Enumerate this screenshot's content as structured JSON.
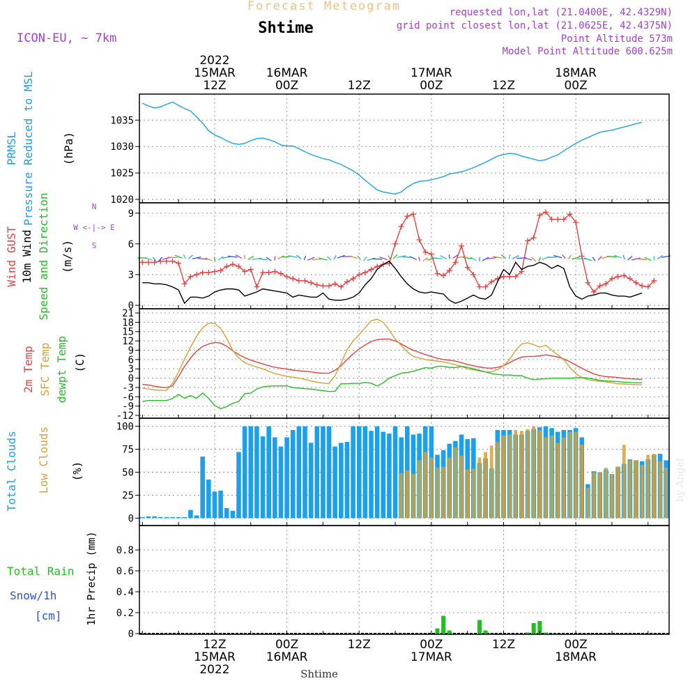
{
  "header": {
    "app_title": "Forecast Meteogram",
    "location": "Shtime",
    "model": "ICON-EU, ~ 7km",
    "requested": "requested lon,lat (21.0400E, 42.4329N)",
    "gridpoint": "grid point closest lon,lat (21.0625E, 42.4375N)",
    "point_alt": "Point Altitude 573m",
    "model_alt": "Model Point Altitude 600.625m",
    "watermark": "by Angel",
    "footer": "Shtime"
  },
  "colors": {
    "blue": "#1aa0ee",
    "red": "#e84040",
    "green": "#20c020",
    "orange": "#d8a030",
    "purple": "#a040d0",
    "black": "#000000",
    "navy": "#3050e0"
  },
  "chart_data": [
    {
      "type": "line",
      "id": "pressure",
      "title": "PRMSL Pressure Reduced to MSL",
      "ylabel_lines": [
        "PRMSL",
        "Pressure Reduced to MSL"
      ],
      "units": "(hPa)",
      "ylim": [
        1020,
        1039
      ],
      "yticks": [
        1020,
        1025,
        1030,
        1035
      ],
      "x_start": 0,
      "x_step": 1,
      "values": [
        1038.2,
        1037.7,
        1037.3,
        1037.5,
        1038.0,
        1038.4,
        1037.8,
        1037.2,
        1036.7,
        1035.6,
        1034.4,
        1033.0,
        1032.2,
        1031.7,
        1031.1,
        1030.6,
        1030.4,
        1030.6,
        1031.1,
        1031.5,
        1031.6,
        1031.3,
        1030.9,
        1030.3,
        1030.1,
        1030.1,
        1029.6,
        1029.0,
        1028.5,
        1028.1,
        1027.7,
        1027.5,
        1027.0,
        1026.6,
        1026.0,
        1025.4,
        1024.6,
        1023.6,
        1022.7,
        1021.8,
        1021.4,
        1021.2,
        1021.0,
        1021.4,
        1022.3,
        1023.0,
        1023.4,
        1023.5,
        1023.7,
        1024.0,
        1024.3,
        1024.8,
        1025.0,
        1025.2,
        1025.6,
        1026.0,
        1026.5,
        1027.0,
        1027.6,
        1028.2,
        1028.5,
        1028.7,
        1028.6,
        1028.2,
        1027.9,
        1027.6,
        1027.3,
        1027.5,
        1028.0,
        1028.4,
        1029.2,
        1029.9,
        1030.6,
        1031.2,
        1031.7,
        1032.2,
        1032.7,
        1032.9,
        1033.1,
        1033.4,
        1033.7,
        1034.0,
        1034.3,
        1034.6
      ]
    },
    {
      "type": "line",
      "id": "wind",
      "ylabel_lines": [
        "Wind GUST",
        "10m Wind",
        "Speed and Direction"
      ],
      "units": "(m/s)",
      "compass": [
        "N",
        "W <-|-> E",
        "S"
      ],
      "ylim": [
        0,
        9.6
      ],
      "yticks": [
        0,
        3,
        6,
        9
      ],
      "x_start": 0,
      "x_step": 1,
      "series": [
        {
          "name": "Wind GUST",
          "color": "red",
          "values": [
            4.2,
            4.2,
            4.2,
            4.3,
            4.3,
            4.3,
            4.1,
            2.1,
            2.8,
            3.0,
            3.2,
            3.2,
            3.3,
            3.4,
            3.8,
            4.0,
            3.8,
            3.3,
            3.5,
            1.8,
            3.2,
            3.2,
            3.3,
            3.1,
            2.8,
            2.6,
            2.4,
            2.4,
            2.2,
            2.0,
            1.9,
            1.9,
            2.1,
            1.8,
            2.3,
            2.6,
            3.0,
            3.2,
            3.5,
            3.8,
            4.0,
            4.1,
            6.0,
            7.7,
            8.7,
            8.9,
            6.4,
            5.2,
            5.0,
            3.1,
            2.9,
            3.4,
            4.2,
            5.8,
            3.7,
            3.0,
            1.8,
            1.8,
            2.3,
            2.6,
            2.8,
            2.8,
            2.8,
            3.3,
            6.3,
            6.6,
            8.8,
            9.1,
            8.4,
            8.4,
            8.4,
            8.9,
            8.1,
            4.8,
            2.2,
            1.3,
            1.9,
            2.1,
            2.6,
            2.8,
            2.9,
            2.6,
            2.2,
            1.9,
            1.8,
            2.4
          ]
        },
        {
          "name": "10m Wind",
          "color": "black",
          "values": [
            2.2,
            2.2,
            2.1,
            2.1,
            2.0,
            1.8,
            1.5,
            0.2,
            0.8,
            0.8,
            0.7,
            0.9,
            1.3,
            1.5,
            1.6,
            1.6,
            1.5,
            0.9,
            1.1,
            1.3,
            1.6,
            1.5,
            1.4,
            1.3,
            1.2,
            0.8,
            1.0,
            0.9,
            0.8,
            0.8,
            1.2,
            0.6,
            0.5,
            0.5,
            0.6,
            0.8,
            1.2,
            2.0,
            2.6,
            3.5,
            4.0,
            4.3,
            3.6,
            2.8,
            2.1,
            1.6,
            1.3,
            1.2,
            1.3,
            1.2,
            1.1,
            0.5,
            0.2,
            0.4,
            0.7,
            1.0,
            0.7,
            0.6,
            1.0,
            2.3,
            3.5,
            3.0,
            4.2,
            3.5,
            3.8,
            3.9,
            4.2,
            4.0,
            3.6,
            3.9,
            3.6,
            1.8,
            0.9,
            0.6,
            0.9,
            1.0,
            1.2,
            1.2,
            1.0,
            0.9,
            0.9,
            0.8,
            1.0,
            1.2
          ]
        }
      ],
      "arrows_color_scale": [
        "#20c020",
        "#30c0c0",
        "#1aa0ee",
        "#3050e0",
        "#a040d0",
        "#e08030"
      ]
    },
    {
      "type": "line",
      "id": "temperature",
      "ylabel_lines": [
        "2m Temp",
        "SFC Temp",
        "dewpt Temp"
      ],
      "units": "(C)",
      "ylim": [
        -12,
        21
      ],
      "yticks": [
        -12,
        -9,
        -6,
        -3,
        0,
        3,
        6,
        9,
        12,
        15,
        18,
        21
      ],
      "x_start": 0,
      "x_step": 1,
      "series": [
        {
          "name": "2m Temp",
          "color": "red",
          "values": [
            -2.0,
            -2.2,
            -2.6,
            -2.9,
            -3.0,
            -2.5,
            0.5,
            3.8,
            6.5,
            8.7,
            10.2,
            11.0,
            11.5,
            11.3,
            10.3,
            8.8,
            7.6,
            6.6,
            5.8,
            5.2,
            4.6,
            4.0,
            3.5,
            3.2,
            2.9,
            2.6,
            2.4,
            2.2,
            2.0,
            1.7,
            1.6,
            1.6,
            2.5,
            4.0,
            6.0,
            7.8,
            9.4,
            10.7,
            11.8,
            12.4,
            12.6,
            12.6,
            12.0,
            11.0,
            9.9,
            9.0,
            8.3,
            7.6,
            7.0,
            6.4,
            6.0,
            5.8,
            5.5,
            5.0,
            4.4,
            4.0,
            3.6,
            3.3,
            3.2,
            3.5,
            4.0,
            5.0,
            6.0,
            6.8,
            7.0,
            7.0,
            7.2,
            7.5,
            7.2,
            6.8,
            6.2,
            5.3,
            4.2,
            3.2,
            2.2,
            1.4,
            0.8,
            0.5,
            0.4,
            0.2,
            0.0,
            -0.2,
            -0.3,
            -0.4
          ]
        },
        {
          "name": "SFC Temp",
          "color": "orange",
          "values": [
            -3.2,
            -3.5,
            -3.8,
            -3.9,
            -3.9,
            -1.7,
            2.0,
            6.2,
            10.0,
            13.5,
            16.2,
            17.7,
            17.7,
            16.0,
            12.8,
            9.0,
            6.5,
            5.0,
            4.2,
            3.6,
            3.0,
            2.2,
            1.5,
            1.0,
            0.6,
            0.3,
            0.0,
            -0.4,
            -0.9,
            -1.3,
            -1.6,
            -1.7,
            0.8,
            4.8,
            9.2,
            12.0,
            14.0,
            16.3,
            18.5,
            19.0,
            18.0,
            15.5,
            12.6,
            10.5,
            8.5,
            7.0,
            6.5,
            6.0,
            5.7,
            5.5,
            5.2,
            4.8,
            4.3,
            3.8,
            3.0,
            2.7,
            2.3,
            2.0,
            2.0,
            2.8,
            4.0,
            6.0,
            9.0,
            11.0,
            11.4,
            10.8,
            10.0,
            10.6,
            9.0,
            7.5,
            6.0,
            3.5,
            1.5,
            0.2,
            -0.5,
            -0.8,
            -1.0,
            -1.2,
            -1.5,
            -1.8,
            -1.9,
            -2.0,
            -2.1,
            -2.1
          ]
        },
        {
          "name": "dewpt Temp",
          "color": "green",
          "values": [
            -7.5,
            -7.2,
            -7.2,
            -7.2,
            -7.2,
            -6.6,
            -5.2,
            -6.5,
            -5.6,
            -6.5,
            -4.8,
            -6.5,
            -8.8,
            -9.8,
            -9.2,
            -8.1,
            -7.5,
            -5.0,
            -4.8,
            -3.5,
            -2.8,
            -2.6,
            -2.5,
            -2.5,
            -2.5,
            -3.0,
            -3.2,
            -3.4,
            -3.5,
            -3.8,
            -4.0,
            -4.3,
            -4.2,
            -1.8,
            -1.8,
            -1.7,
            -1.7,
            -1.4,
            -1.6,
            -2.5,
            -1.5,
            0.0,
            0.8,
            1.6,
            1.8,
            2.2,
            2.8,
            3.4,
            3.2,
            3.8,
            3.8,
            3.5,
            3.4,
            3.8,
            3.5,
            3.0,
            2.5,
            2.0,
            1.5,
            1.2,
            1.0,
            1.0,
            0.8,
            0.8,
            0.0,
            -0.5,
            -0.3,
            -0.2,
            0.0,
            0.0,
            0.0,
            0.0,
            0.1,
            0.2,
            0.0,
            -0.3,
            -0.7,
            -0.9,
            -1.0,
            -1.1,
            -1.3,
            -1.4,
            -1.5,
            -1.5
          ]
        }
      ]
    },
    {
      "type": "bar",
      "id": "clouds",
      "ylabel_lines": [
        "Total Clouds",
        "Low Clouds"
      ],
      "units": "(%)",
      "ylim": [
        -5,
        105
      ],
      "yticks": [
        0,
        25,
        50,
        75,
        100
      ],
      "x_start": 0,
      "x_step": 1,
      "series": [
        {
          "name": "Total Clouds",
          "color": "blue",
          "values": [
            0,
            2,
            2,
            0,
            0,
            0,
            0,
            0,
            9,
            3,
            67,
            42,
            29,
            30,
            11,
            8,
            72,
            100,
            100,
            100,
            89,
            100,
            88,
            78,
            88,
            96,
            100,
            100,
            82,
            100,
            100,
            100,
            78,
            82,
            83,
            100,
            100,
            100,
            95,
            100,
            94,
            92,
            100,
            88,
            100,
            91,
            92,
            100,
            100,
            69,
            74,
            81,
            84,
            91,
            86,
            87,
            60,
            65,
            54,
            96,
            96,
            96,
            91,
            91,
            95,
            97,
            99,
            100,
            98,
            94,
            96,
            96,
            98,
            88,
            37,
            51,
            50,
            53,
            48,
            56,
            59,
            64,
            63,
            62,
            64,
            69,
            70,
            63,
            55
          ]
        },
        {
          "name": "Low Clouds",
          "color": "orange",
          "values": [
            0,
            0,
            0,
            0,
            0,
            0,
            0,
            0,
            0,
            0,
            0,
            0,
            0,
            0,
            0,
            0,
            0,
            0,
            0,
            0,
            0,
            0,
            0,
            0,
            0,
            0,
            0,
            0,
            0,
            0,
            0,
            0,
            0,
            0,
            0,
            0,
            0,
            0,
            0,
            0,
            0,
            0,
            0,
            49,
            52,
            48,
            63,
            72,
            66,
            55,
            56,
            66,
            77,
            68,
            53,
            54,
            66,
            72,
            79,
            83,
            90,
            91,
            96,
            95,
            97,
            100,
            96,
            88,
            90,
            82,
            88,
            94,
            94,
            80,
            33,
            50,
            50,
            55,
            48,
            56,
            80,
            63,
            63,
            58,
            69,
            70,
            62,
            55
          ]
        }
      ]
    },
    {
      "type": "bar",
      "id": "precip",
      "ylabel_lines": [
        "Total  Rain",
        "Snow/1h",
        "[cm]"
      ],
      "ylabel_axis": "1hr Precip (mm)",
      "ylim": [
        0,
        1
      ],
      "yticks": [
        0,
        0.2,
        0.4,
        0.6,
        0.8
      ],
      "x_start": 0,
      "x_step": 1,
      "series": [
        {
          "name": "Total Rain",
          "color": "green",
          "values": [
            0,
            0,
            0,
            0,
            0,
            0,
            0,
            0,
            0,
            0,
            0,
            0,
            0,
            0,
            0,
            0,
            0,
            0,
            0,
            0,
            0,
            0,
            0,
            0,
            0,
            0,
            0,
            0,
            0,
            0,
            0,
            0,
            0,
            0,
            0,
            0,
            0,
            0,
            0,
            0,
            0,
            0,
            0,
            0,
            0,
            0,
            0,
            0,
            0,
            0.05,
            0.17,
            0.03,
            0,
            0,
            0,
            0,
            0.13,
            0.03,
            0,
            0,
            0,
            0,
            0,
            0,
            0.01,
            0.1,
            0.12,
            0.01,
            0,
            0,
            0,
            0,
            0,
            0,
            0,
            0,
            0,
            0,
            0,
            0,
            0,
            0,
            0,
            0,
            0
          ]
        }
      ]
    }
  ],
  "time_axis": {
    "top_labels": [
      {
        "lines": [
          "2022",
          "15MAR",
          "12Z"
        ],
        "step": 12
      },
      {
        "lines": [
          "16MAR",
          "00Z"
        ],
        "step": 24
      },
      {
        "lines": [
          "12Z"
        ],
        "step": 36
      },
      {
        "lines": [
          "17MAR",
          "00Z"
        ],
        "step": 48
      },
      {
        "lines": [
          "12Z"
        ],
        "step": 60
      },
      {
        "lines": [
          "18MAR",
          "00Z"
        ],
        "step": 72
      }
    ],
    "bottom_labels": [
      {
        "lines": [
          "12Z",
          "15MAR",
          "2022"
        ],
        "step": 12
      },
      {
        "lines": [
          "00Z",
          "16MAR"
        ],
        "step": 24
      },
      {
        "lines": [
          "12Z"
        ],
        "step": 36
      },
      {
        "lines": [
          "00Z",
          "17MAR"
        ],
        "step": 48
      },
      {
        "lines": [
          "12Z"
        ],
        "step": 60
      },
      {
        "lines": [
          "00Z",
          "18MAR"
        ],
        "step": 72
      }
    ]
  }
}
